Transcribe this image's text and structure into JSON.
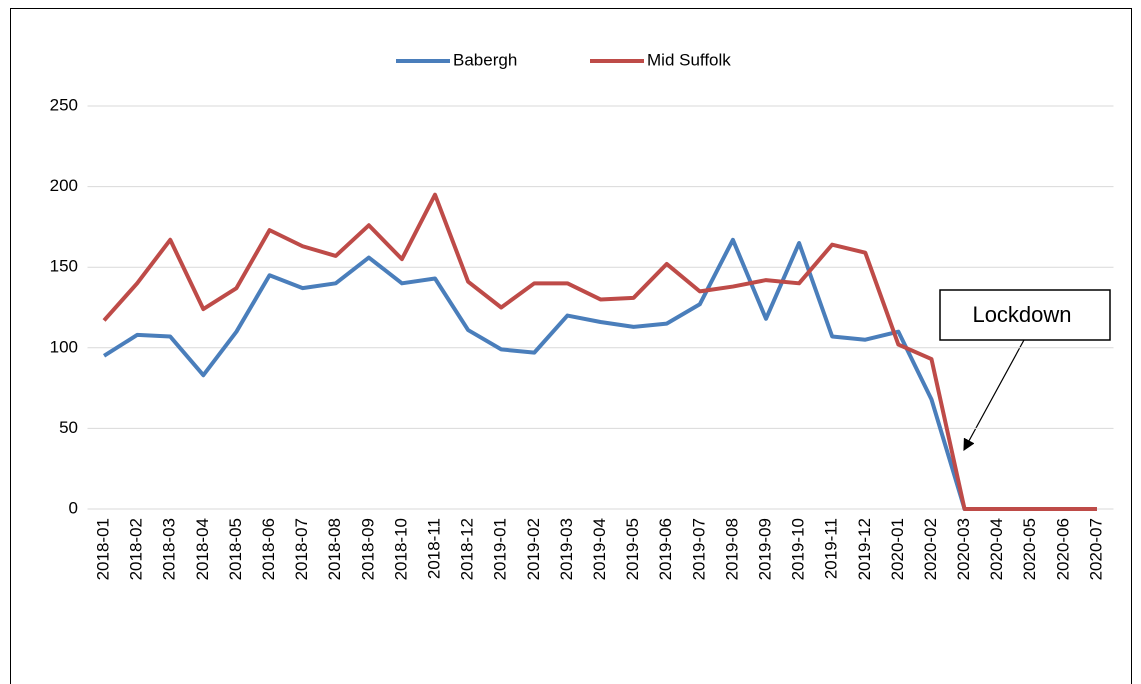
{
  "chart_data": {
    "type": "line",
    "categories": [
      "2018-01",
      "2018-02",
      "2018-03",
      "2018-04",
      "2018-05",
      "2018-06",
      "2018-07",
      "2018-08",
      "2018-09",
      "2018-10",
      "2018-11",
      "2018-12",
      "2019-01",
      "2019-02",
      "2019-03",
      "2019-04",
      "2019-05",
      "2019-06",
      "2019-07",
      "2019-08",
      "2019-09",
      "2019-10",
      "2019-11",
      "2019-12",
      "2020-01",
      "2020-02",
      "2020-03",
      "2020-04",
      "2020-05",
      "2020-06",
      "2020-07"
    ],
    "series": [
      {
        "name": "Babergh",
        "color": "#4a7ebb",
        "values": [
          95,
          108,
          107,
          83,
          110,
          145,
          137,
          140,
          156,
          140,
          143,
          111,
          99,
          97,
          120,
          116,
          113,
          115,
          127,
          167,
          118,
          165,
          107,
          105,
          110,
          68,
          0,
          0,
          0,
          0,
          0
        ]
      },
      {
        "name": "Mid Suffolk",
        "color": "#be4b48",
        "values": [
          117,
          140,
          167,
          124,
          137,
          173,
          163,
          157,
          176,
          155,
          195,
          141,
          125,
          140,
          140,
          130,
          131,
          152,
          135,
          138,
          142,
          140,
          164,
          159,
          102,
          93,
          0,
          0,
          0,
          0,
          0
        ]
      }
    ],
    "ylim": [
      0,
      250
    ],
    "yticks": [
      0,
      50,
      100,
      150,
      200,
      250
    ],
    "grid": true,
    "legend": "top",
    "annotations": [
      "Lockdown"
    ]
  }
}
